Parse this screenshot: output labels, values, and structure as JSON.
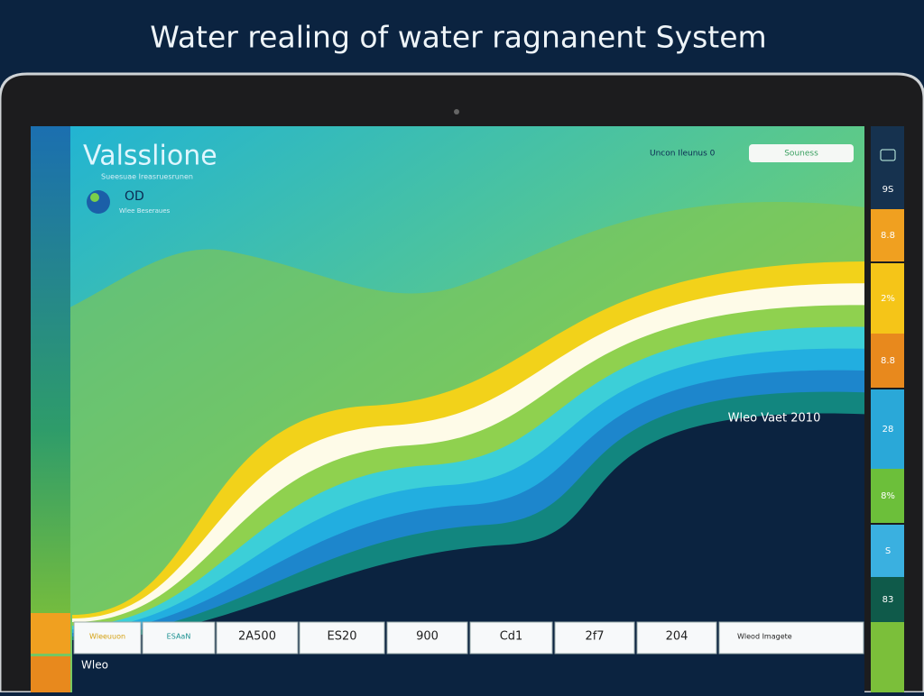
{
  "header": {
    "title": "Water realing of water ragnanent System"
  },
  "screen": {
    "app_title": "Valsslione",
    "subtitle": "Sueesuae Ireasruesrunen",
    "metric": "OD",
    "metric_label": "Wlee Beseraues",
    "top_label": "Uncon Ileunus 0",
    "button": "Souness"
  },
  "chart_label": "Wleo Vaet 2010",
  "bottom_row": [
    "Wleeuuon",
    "ESAaN",
    "2A500",
    "ES20",
    "900",
    "Cd1",
    "2f7",
    "204",
    "Wleod Imagete"
  ],
  "footer_label": "Wleo",
  "sidebar": [
    "9S",
    "8.8",
    "2%",
    "8.8",
    "28",
    "8%",
    "S",
    "83"
  ]
}
